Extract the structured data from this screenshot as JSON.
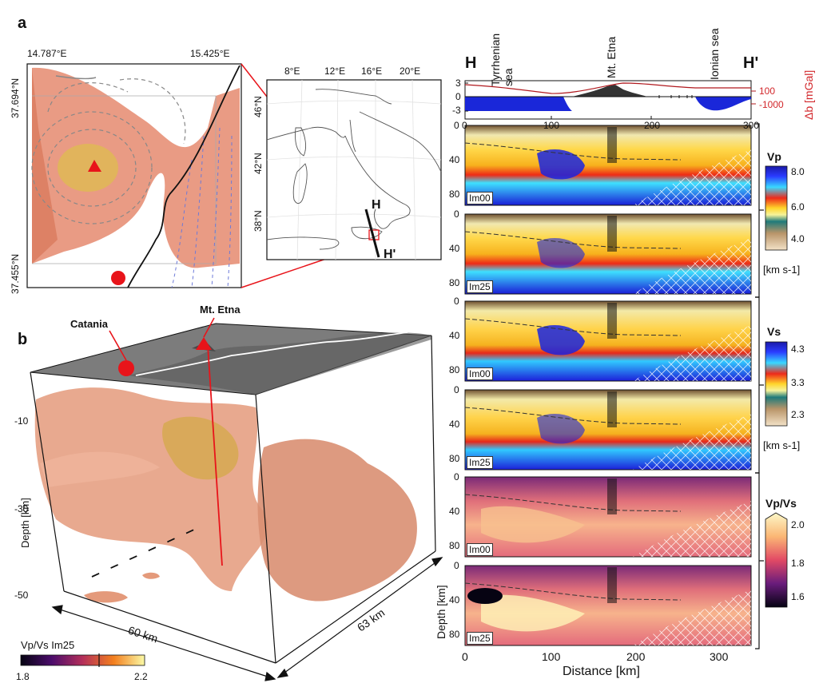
{
  "panel_a": {
    "letter": "a",
    "lon_left": "14.787°E",
    "lon_right": "15.425°E",
    "lat_top": "37.694°N",
    "lat_bottom": "37.455°N",
    "map_lon_ticks": [
      "8°E",
      "12°E",
      "16°E",
      "20°E"
    ],
    "map_lat_ticks": [
      "46°N",
      "42°N",
      "38°N"
    ],
    "profile_start": "H",
    "profile_end": "H'"
  },
  "panel_b": {
    "letter": "b",
    "catania": "Catania",
    "etna": "Mt. Etna",
    "depth_axis_label": "Depth [km]",
    "depth_ticks": [
      "-10",
      "-30",
      "-50"
    ],
    "dim_x": "60 km",
    "dim_y": "63 km",
    "colorbar_title": "Vp/Vs Im25",
    "colorbar_min": "1.8",
    "colorbar_max": "2.2"
  },
  "sections": {
    "h_start": "H",
    "h_end": "H'",
    "place_tyrrhenian": "Tyrrhenian sea",
    "place_etna": "Mt. Etna",
    "place_ionian": "Ionian sea",
    "topo_ticks": [
      "3",
      "0",
      "-3"
    ],
    "topo_x_ticks": [
      "0",
      "100",
      "200",
      "300"
    ],
    "gravity_label": "Δb [mGal]",
    "gravity_ticks": [
      "100",
      "-1000"
    ],
    "depth_ticks": [
      "0",
      "40",
      "80"
    ],
    "x_ticks": [
      "0",
      "100",
      "200",
      "300"
    ],
    "xlabel": "Distance [km]",
    "ylabel": "Depth [km]",
    "panels": [
      "Im00",
      "Im25",
      "Im00",
      "Im25",
      "Im00",
      "Im25"
    ],
    "cb_vp": {
      "title": "Vp",
      "ticks": [
        "8.0",
        "6.0",
        "4.0"
      ],
      "unit": "[km s-1]"
    },
    "cb_vs": {
      "title": "Vs",
      "ticks": [
        "4.3",
        "3.3",
        "2.3"
      ],
      "unit": "[km s-1]"
    },
    "cb_vpvs": {
      "title": "Vp/Vs",
      "ticks": [
        "2.0",
        "1.8",
        "1.6"
      ]
    }
  },
  "colors": {
    "red": "#e8141a",
    "gravity": "#b0191e",
    "bathy": "#1c2fd6"
  }
}
